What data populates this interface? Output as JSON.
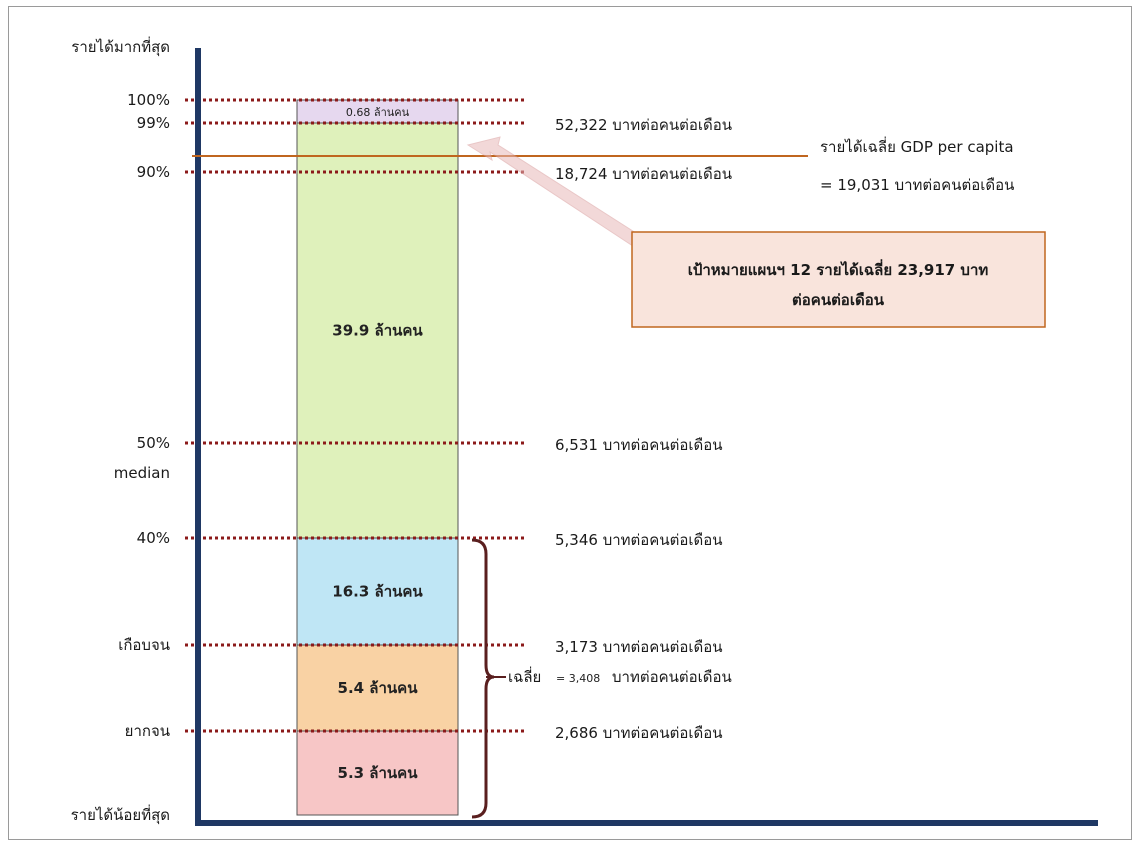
{
  "chart_data": {
    "type": "bar",
    "title": "",
    "y_axis_top_label": "รายได้มากที่สุด",
    "y_axis_bottom_label": "รายได้น้อยที่สุด",
    "segments": [
      {
        "label": "5.3 ล้านคน",
        "from": 0,
        "to": 10,
        "color": "#f7c6c6"
      },
      {
        "label": "5.4 ล้านคน",
        "from": 10,
        "to": 20,
        "color": "#f9d2a4"
      },
      {
        "label": "16.3 ล้านคน",
        "from": 20,
        "to": 40,
        "color": "#bfe6f5"
      },
      {
        "label": "39.9 ล้านคน",
        "from": 40,
        "to": 99,
        "color": "#dff1bb"
      },
      {
        "label": "0.68 ล้านคน",
        "from": 99,
        "to": 100,
        "color": "#e6d8ef"
      }
    ],
    "thresholds": [
      {
        "left_label": "100%",
        "level": 100,
        "right_text": ""
      },
      {
        "left_label": "99%",
        "level": 99,
        "right_text": "52,322 บาทต่อคนต่อเดือน"
      },
      {
        "left_label": "90%",
        "level": 90,
        "right_text": "18,724 บาทต่อคนต่อเดือน"
      },
      {
        "left_label": "50%",
        "level": 50,
        "right_text": "6,531 บาทต่อคนต่อเดือน"
      },
      {
        "left_label": "40%",
        "level": 40,
        "right_text": "5,346 บาทต่อคนต่อเดือน"
      },
      {
        "left_label": "เกือบจน",
        "level": 20,
        "right_text": "3,173 บาทต่อคนต่อเดือน"
      },
      {
        "left_label": "ยากจน",
        "level": 10,
        "right_text": "2,686 บาทต่อคนต่อเดือน"
      }
    ],
    "median_label": "median",
    "gdp_line": {
      "level": 90.5,
      "line1": "รายได้เฉลี่ย GDP per capita",
      "line2": "= 19,031 บาทต่อคนต่อเดือน",
      "color": "#c0661f"
    },
    "bracket": {
      "from": 0,
      "to": 40,
      "label_prefix": "เฉลี่ย",
      "label_eq": "= 3,408",
      "label_rest": "บาทต่อคนต่อเดือน",
      "color": "#5a1f1f"
    },
    "callout": {
      "line1": "เป้าหมายแผนฯ 12 รายได้เฉลี่ย 23,917 บาท",
      "line2": "ต่อคนต่อเดือน",
      "fill": "#f9e4dc",
      "border": "#c0661f"
    },
    "colors": {
      "axis": "#1f3864",
      "dotted": "#8b1a1a"
    }
  }
}
